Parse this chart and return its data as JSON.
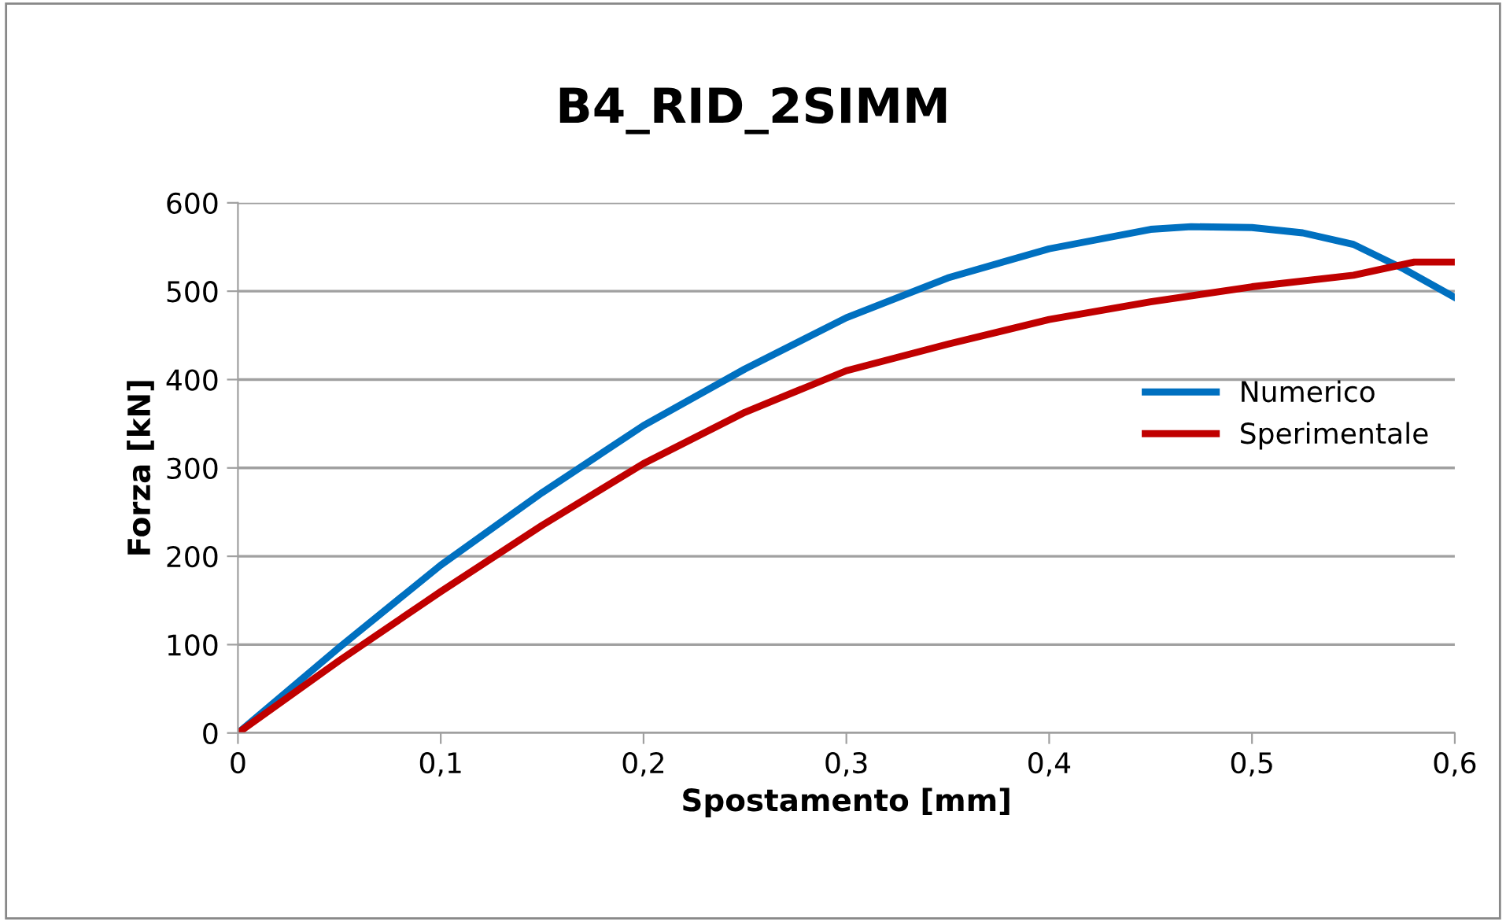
{
  "chart_data": {
    "type": "line",
    "title": "B4_RID_2SIMM",
    "xlabel": "Spostamento [mm]",
    "ylabel": "Forza [kN]",
    "xlim": [
      0,
      0.6
    ],
    "ylim": [
      0,
      600
    ],
    "xticks": [
      {
        "value": 0,
        "label": "0"
      },
      {
        "value": 0.1,
        "label": "0,1"
      },
      {
        "value": 0.2,
        "label": "0,2"
      },
      {
        "value": 0.3,
        "label": "0,3"
      },
      {
        "value": 0.4,
        "label": "0,4"
      },
      {
        "value": 0.5,
        "label": "0,5"
      },
      {
        "value": 0.6,
        "label": "0,6"
      }
    ],
    "yticks": [
      0,
      100,
      200,
      300,
      400,
      500,
      600
    ],
    "grid": "y",
    "legend": "right",
    "marker": "none",
    "line_style": "solid",
    "series": [
      {
        "name": "Numerico",
        "color": "#0070c0",
        "x": [
          0,
          0.05,
          0.1,
          0.15,
          0.2,
          0.25,
          0.3,
          0.35,
          0.4,
          0.45,
          0.47,
          0.5,
          0.525,
          0.55,
          0.575,
          0.6
        ],
        "values": [
          0,
          97,
          190,
          272,
          348,
          412,
          470,
          515,
          548,
          570,
          573,
          572,
          566,
          553,
          525,
          493
        ]
      },
      {
        "name": "Sperimentale",
        "color": "#c00000",
        "x": [
          0,
          0.05,
          0.1,
          0.15,
          0.2,
          0.25,
          0.3,
          0.35,
          0.4,
          0.45,
          0.5,
          0.55,
          0.58,
          0.6
        ],
        "values": [
          0,
          82,
          160,
          235,
          305,
          363,
          410,
          440,
          468,
          488,
          505,
          518,
          533,
          533
        ]
      }
    ]
  }
}
